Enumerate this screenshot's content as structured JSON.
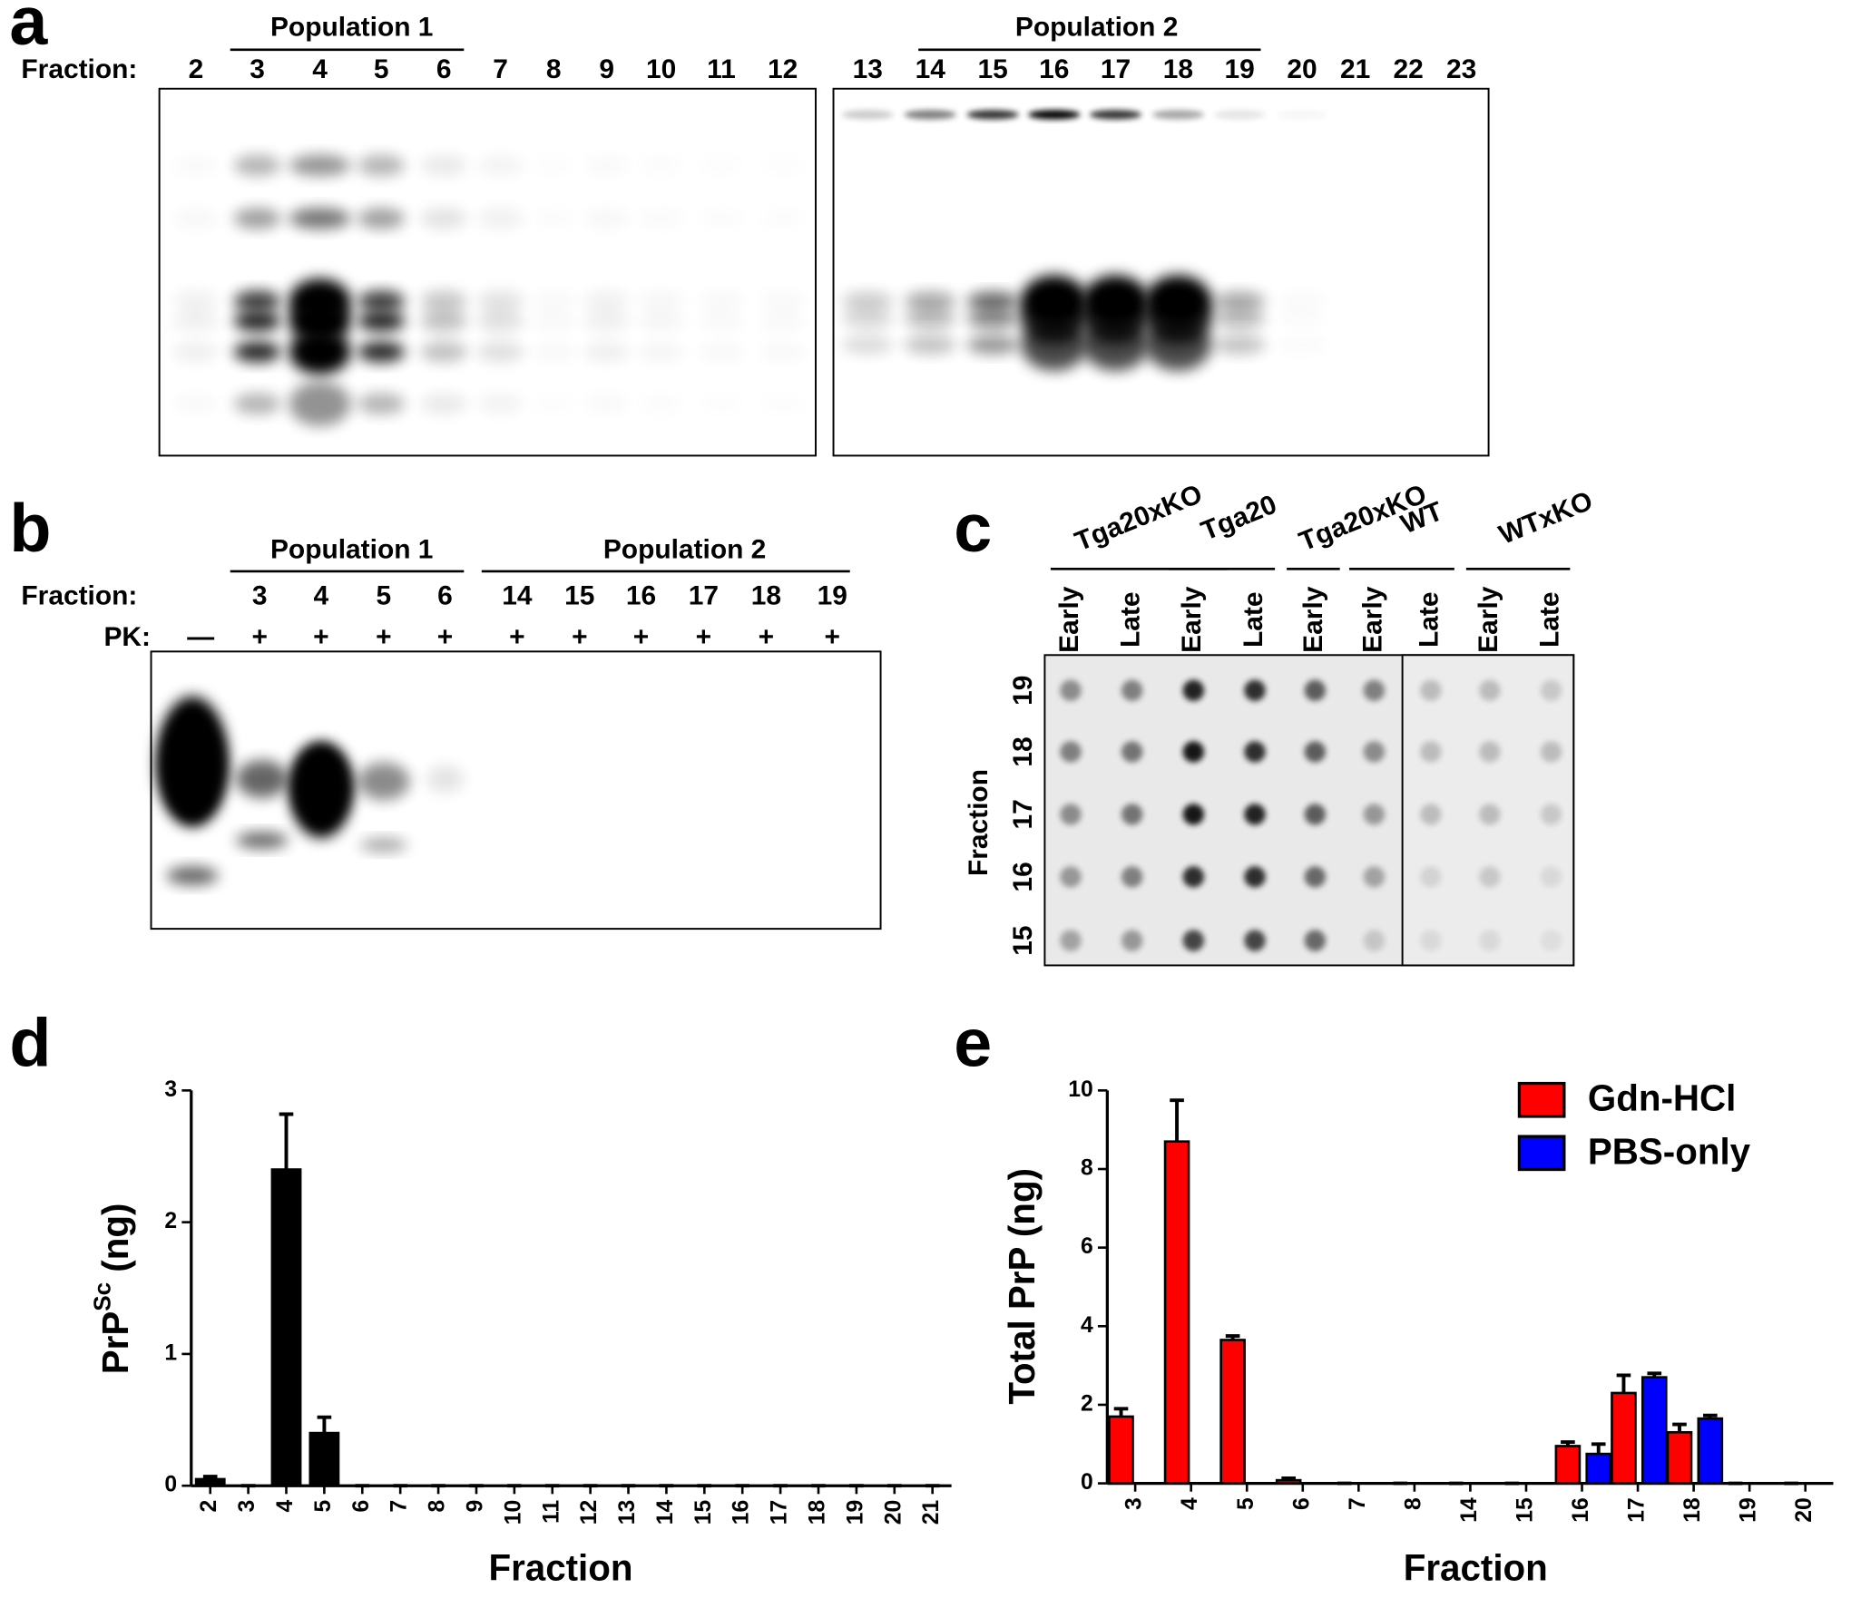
{
  "panel_a": {
    "panel_label": "a",
    "fraction_label": "Fraction:",
    "fractions": [
      "2",
      "3",
      "4",
      "5",
      "6",
      "7",
      "8",
      "9",
      "10",
      "11",
      "12",
      "13",
      "14",
      "15",
      "16",
      "17",
      "18",
      "19",
      "20",
      "21",
      "22",
      "23"
    ],
    "populations": [
      "Population 1",
      "Population 2"
    ]
  },
  "panel_b": {
    "panel_label": "b",
    "populations": [
      "Population 1",
      "Population 2"
    ],
    "fraction_label": "Fraction:",
    "fractions": [
      "3",
      "4",
      "5",
      "6",
      "14",
      "15",
      "16",
      "17",
      "18",
      "19"
    ],
    "pk_label": "PK:",
    "pk": [
      "—",
      "+",
      "+",
      "+",
      "+",
      "+",
      "+",
      "+",
      "+",
      "+",
      "+"
    ]
  },
  "panel_c": {
    "panel_label": "c",
    "groups": [
      "Tga20xKO",
      "Tga20",
      "Tga20xKO",
      "WT",
      "WTxKO"
    ],
    "lanes": [
      "Early",
      "Late",
      "Early",
      "Late",
      "Early",
      "Early",
      "Late",
      "Early",
      "Late"
    ],
    "row_title": "Fraction",
    "rows": [
      "19",
      "18",
      "17",
      "16",
      "15"
    ]
  },
  "chart_data": [
    {
      "type": "bar",
      "panel_label": "d",
      "y_label": {
        "base": "PrP",
        "sup": "Sc",
        "unit": "(ng)"
      },
      "x_label": "Fraction",
      "categories": [
        "2",
        "3",
        "4",
        "5",
        "6",
        "7",
        "8",
        "9",
        "10",
        "11",
        "12",
        "13",
        "14",
        "15",
        "16",
        "17",
        "18",
        "19",
        "20",
        "21"
      ],
      "values": [
        0.05,
        0,
        2.4,
        0.4,
        0,
        0,
        0,
        0,
        0,
        0,
        0,
        0,
        0,
        0,
        0,
        0,
        0,
        0,
        0,
        0
      ],
      "errors": [
        0.02,
        0,
        0.42,
        0.12,
        0,
        0,
        0,
        0,
        0,
        0,
        0,
        0,
        0,
        0,
        0,
        0,
        0,
        0,
        0,
        0
      ],
      "color": "#000000",
      "ylim": [
        0,
        3
      ],
      "yticks": [
        0,
        1,
        2,
        3
      ]
    },
    {
      "type": "grouped_bar",
      "panel_label": "e",
      "y_label": "Total PrP (ng)",
      "x_label": "Fraction",
      "legend": "top-right",
      "categories": [
        "3",
        "4",
        "5",
        "6",
        "7",
        "8",
        "14",
        "15",
        "16",
        "17",
        "18",
        "19",
        "20"
      ],
      "series": [
        {
          "name": "Gdn-HCl",
          "color": "#ff0000",
          "values": [
            1.7,
            8.7,
            3.65,
            0.08,
            0,
            0,
            0,
            0,
            0.95,
            2.3,
            1.3,
            0,
            0
          ],
          "errors": [
            0.2,
            1.05,
            0.1,
            0.05,
            0,
            0,
            0,
            0,
            0.1,
            0.45,
            0.2,
            0,
            0
          ]
        },
        {
          "name": "PBS-only",
          "color": "#0000ff",
          "values": [
            null,
            null,
            null,
            null,
            null,
            null,
            null,
            null,
            0.75,
            2.7,
            1.65,
            null,
            null
          ],
          "errors": [
            null,
            null,
            null,
            null,
            null,
            null,
            null,
            null,
            0.25,
            0.1,
            0.08,
            null,
            null
          ]
        }
      ],
      "ylim": [
        0,
        10
      ],
      "yticks": [
        0,
        2,
        4,
        6,
        8,
        10
      ]
    }
  ]
}
